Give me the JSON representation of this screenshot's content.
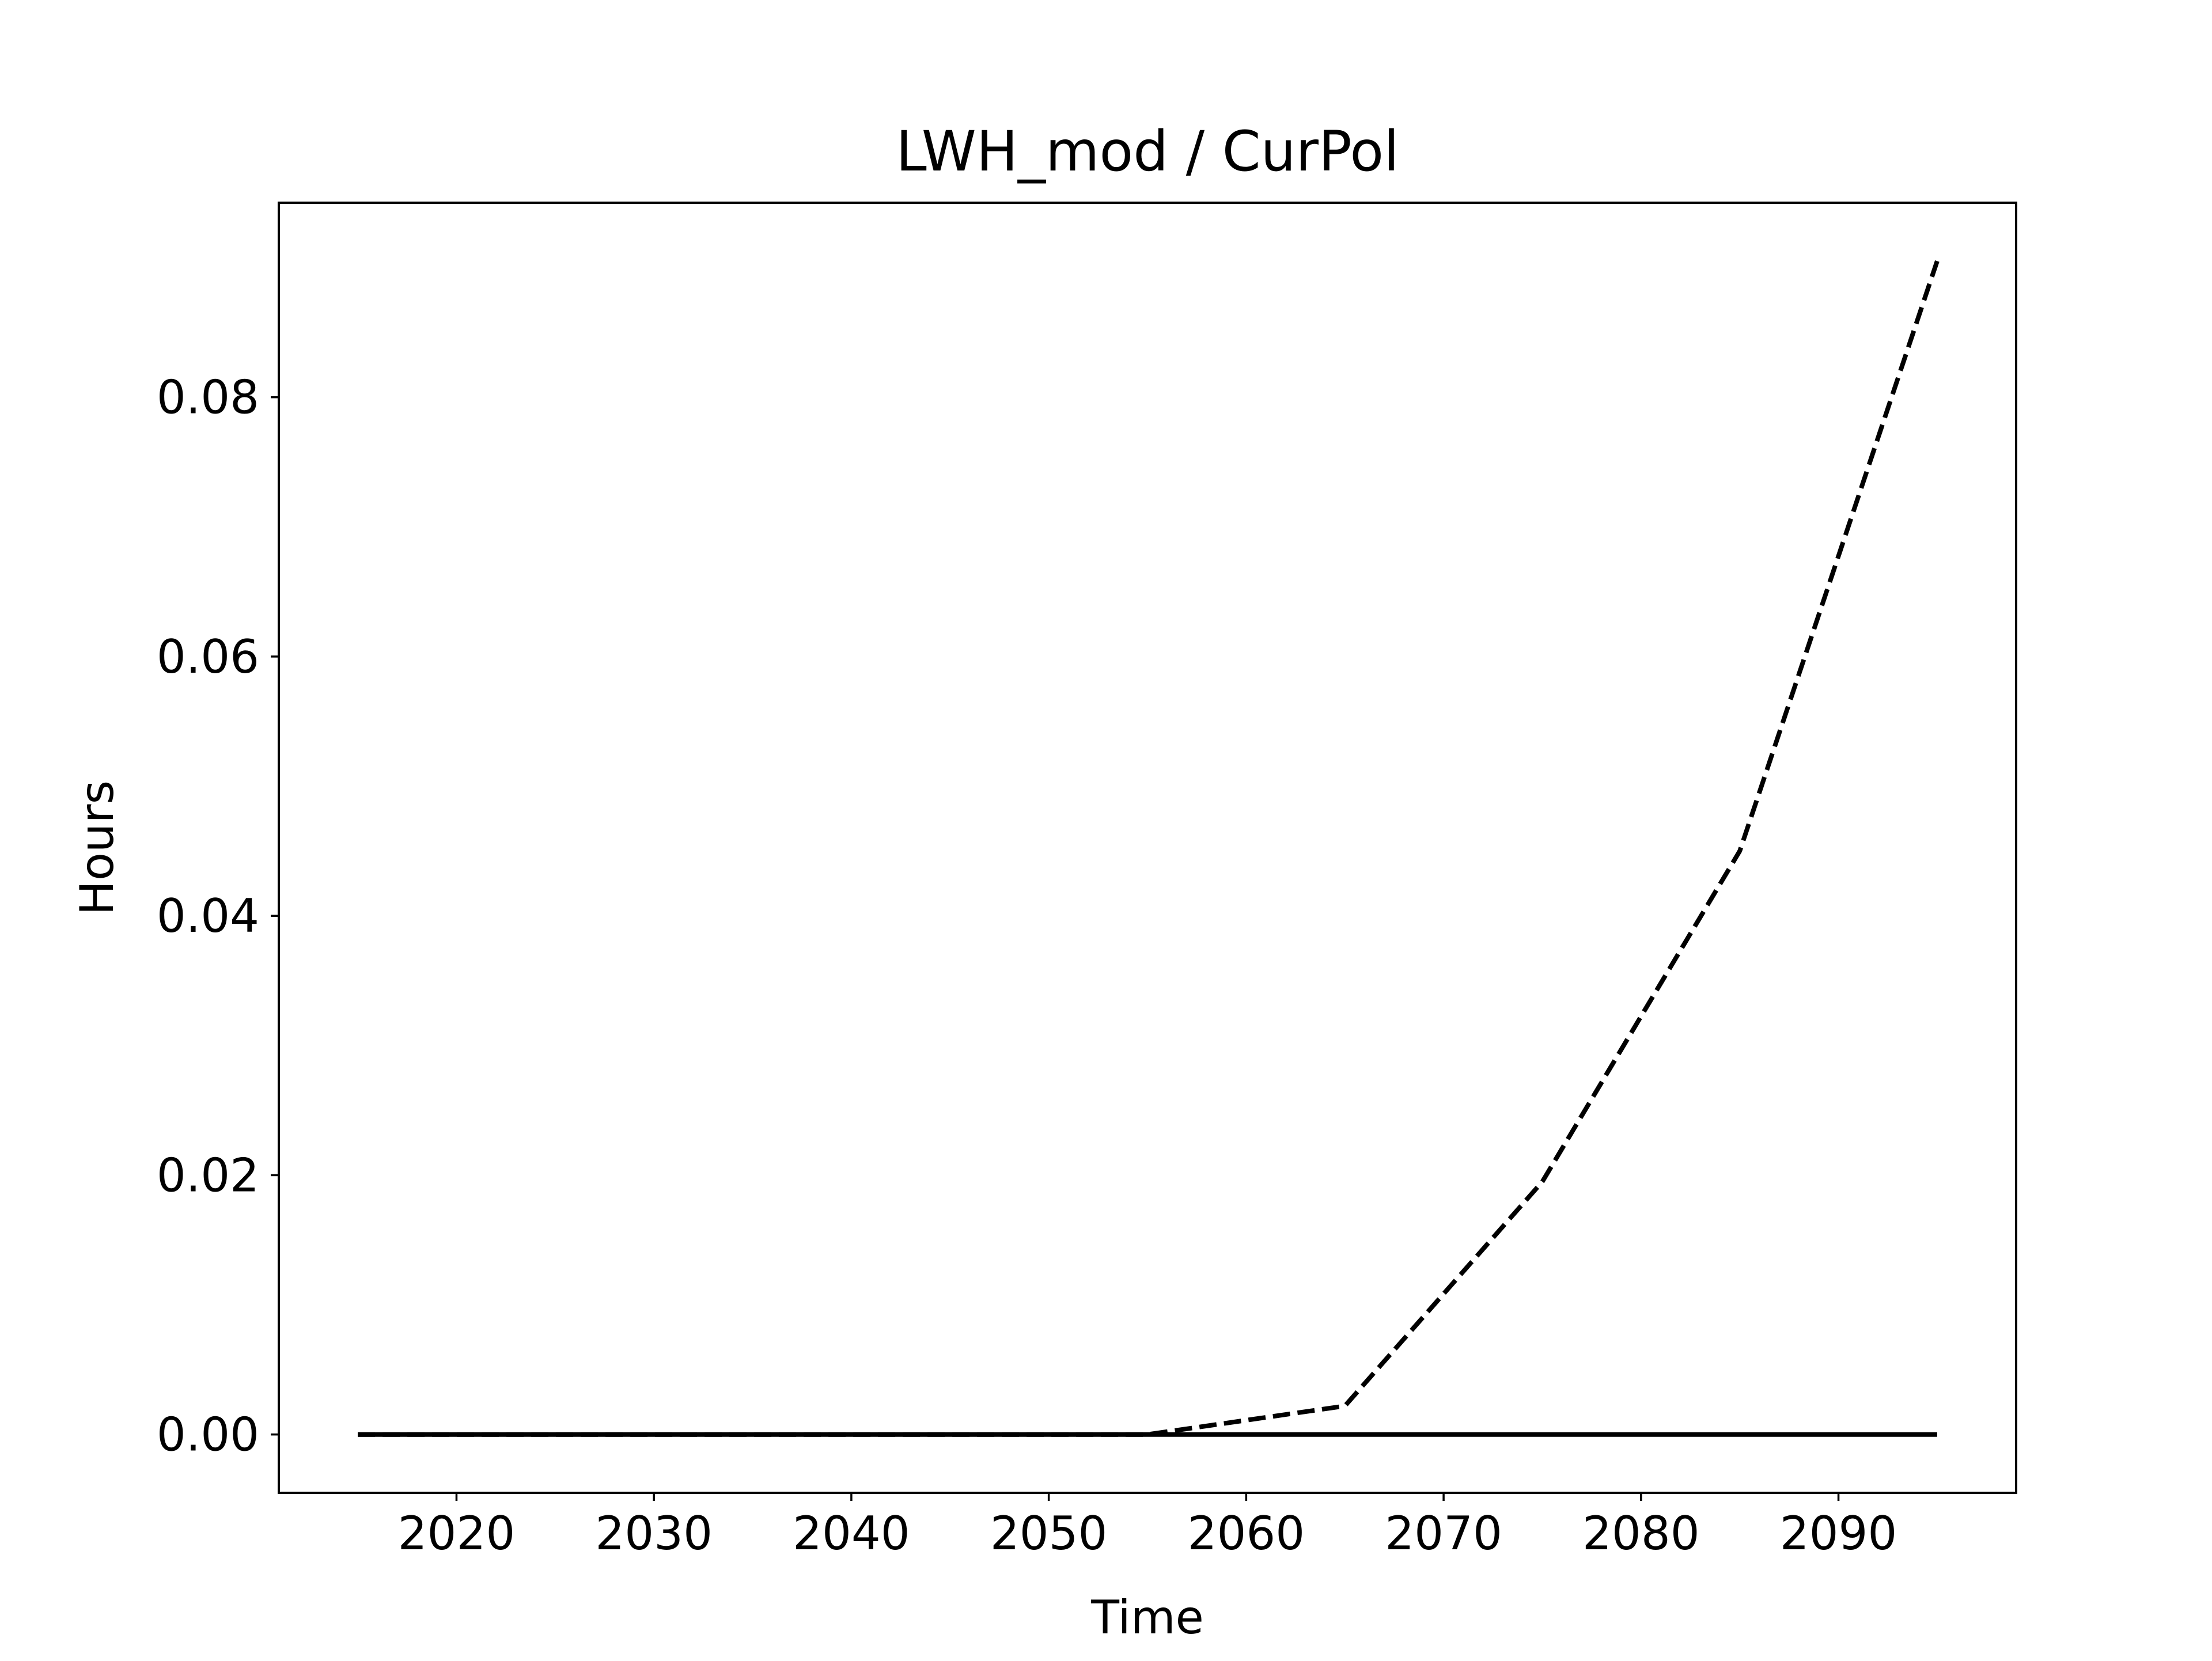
{
  "chart_data": {
    "type": "line",
    "title": "LWH_mod / CurPol",
    "xlabel": "Time",
    "ylabel": "Hours",
    "xlim": [
      2011,
      2099
    ],
    "ylim": [
      -0.0045,
      0.095
    ],
    "xticks": [
      2020,
      2030,
      2040,
      2050,
      2060,
      2070,
      2080,
      2090
    ],
    "yticks": [
      0.0,
      0.02,
      0.04,
      0.06,
      0.08
    ],
    "ytick_labels": [
      "0.00",
      "0.02",
      "0.04",
      "0.06",
      "0.08"
    ],
    "grid": false,
    "series": [
      {
        "style": "dashed",
        "color": "#000000",
        "x": [
          2015,
          2025,
          2035,
          2045,
          2055,
          2065,
          2075,
          2085,
          2095
        ],
        "y": [
          0.0,
          0.0,
          0.0,
          0.0,
          0.0,
          0.0022,
          0.0195,
          0.045,
          0.0905
        ]
      },
      {
        "style": "solid",
        "color": "#000000",
        "x": [
          2015,
          2025,
          2035,
          2045,
          2055,
          2065,
          2075,
          2085,
          2095
        ],
        "y": [
          0.0,
          0.0,
          0.0,
          0.0,
          0.0,
          0.0,
          0.0,
          0.0,
          0.0
        ]
      }
    ]
  }
}
